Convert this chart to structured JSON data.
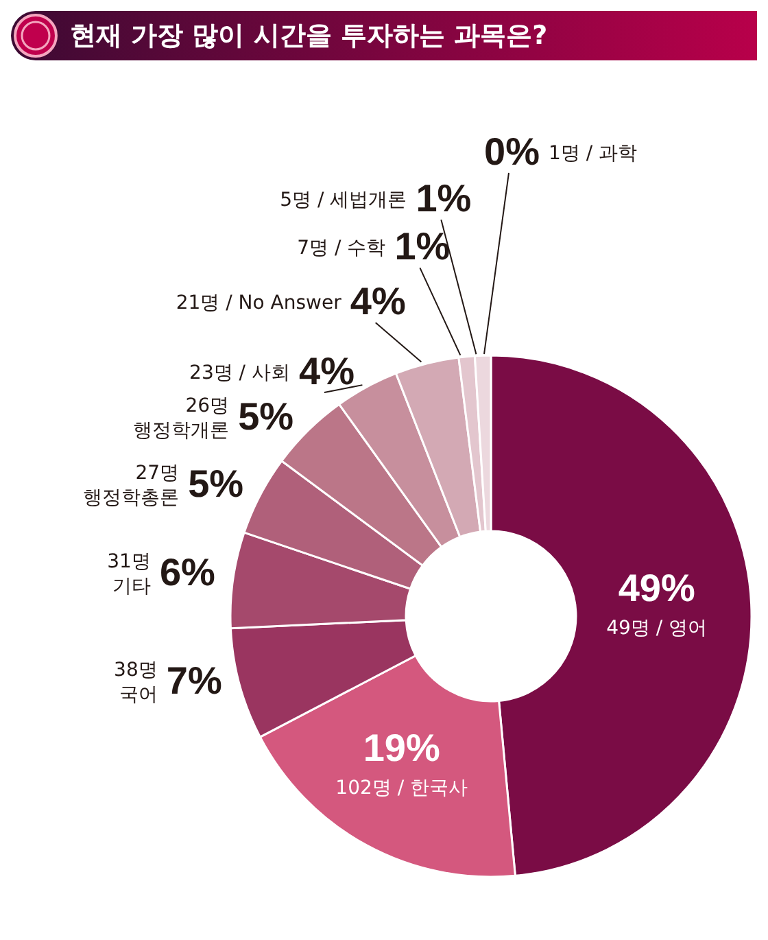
{
  "chart_data": {
    "type": "donut",
    "title": "현재 가장 많이 시간을 투자하는 과목은?",
    "categories": [
      "49명 / 영어",
      "102명 / 한국사",
      "38명\n국어",
      "31명\n기타",
      "27명\n행정학총론",
      "26명\n행정학개론",
      "23명 / 사회",
      "21명 / No Answer",
      "7명 / 수학",
      "5명 / 세법개론",
      "1명 / 과학"
    ],
    "values": [
      49,
      19,
      7,
      6,
      5,
      5,
      4,
      4,
      1,
      1,
      0
    ],
    "value_labels": [
      "49%",
      "19%",
      "7%",
      "6%",
      "5%",
      "5%",
      "4%",
      "4%",
      "1%",
      "1%",
      "0%"
    ],
    "colors": [
      "#7a0c45",
      "#d4587e",
      "#9a3560",
      "#a5496c",
      "#b0607a",
      "#bb7688",
      "#c78f9d",
      "#d3a9b4",
      "#e3c6ce",
      "#ecd8de",
      "#f5e9ed"
    ]
  }
}
